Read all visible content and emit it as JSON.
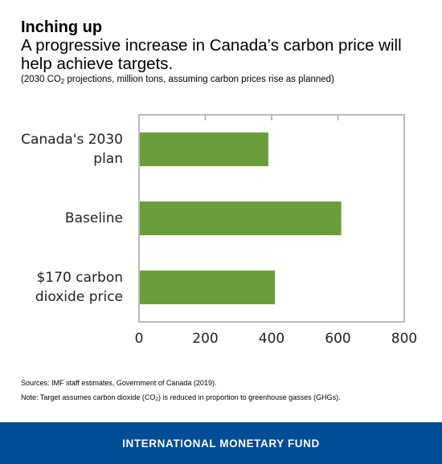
{
  "kicker": "Inching up",
  "headline": "A progressive increase in Canada’s carbon price will help achieve targets.",
  "subtitle": {
    "before": "(2030 CO",
    "sub": "2",
    "after": " projections, million tons, assuming carbon prices rise as planned)"
  },
  "chart_data": {
    "type": "bar",
    "orientation": "horizontal",
    "categories": [
      [
        "Canada's 2030",
        "plan"
      ],
      [
        "Baseline"
      ],
      [
        "$170 carbon",
        "dioxide price"
      ]
    ],
    "values": [
      390,
      610,
      410
    ],
    "xlim": [
      0,
      800
    ],
    "xticks": [
      0,
      200,
      400,
      600,
      800
    ],
    "xtick_labels": [
      "0",
      "200",
      "400",
      "600",
      "800"
    ],
    "bar_color": "#6b9e3b",
    "grid": false
  },
  "source": "Sources: IMF staff estimates, Government of Canada (2019).",
  "note": {
    "before": "Note: Target assumes carbon dioxide (CO",
    "sub": "2",
    "after": ") is reduced in proportion to greenhouse gasses (GHGs)."
  },
  "footer": {
    "label": "INTERNATIONAL MONETARY FUND",
    "background": "#004c97"
  }
}
